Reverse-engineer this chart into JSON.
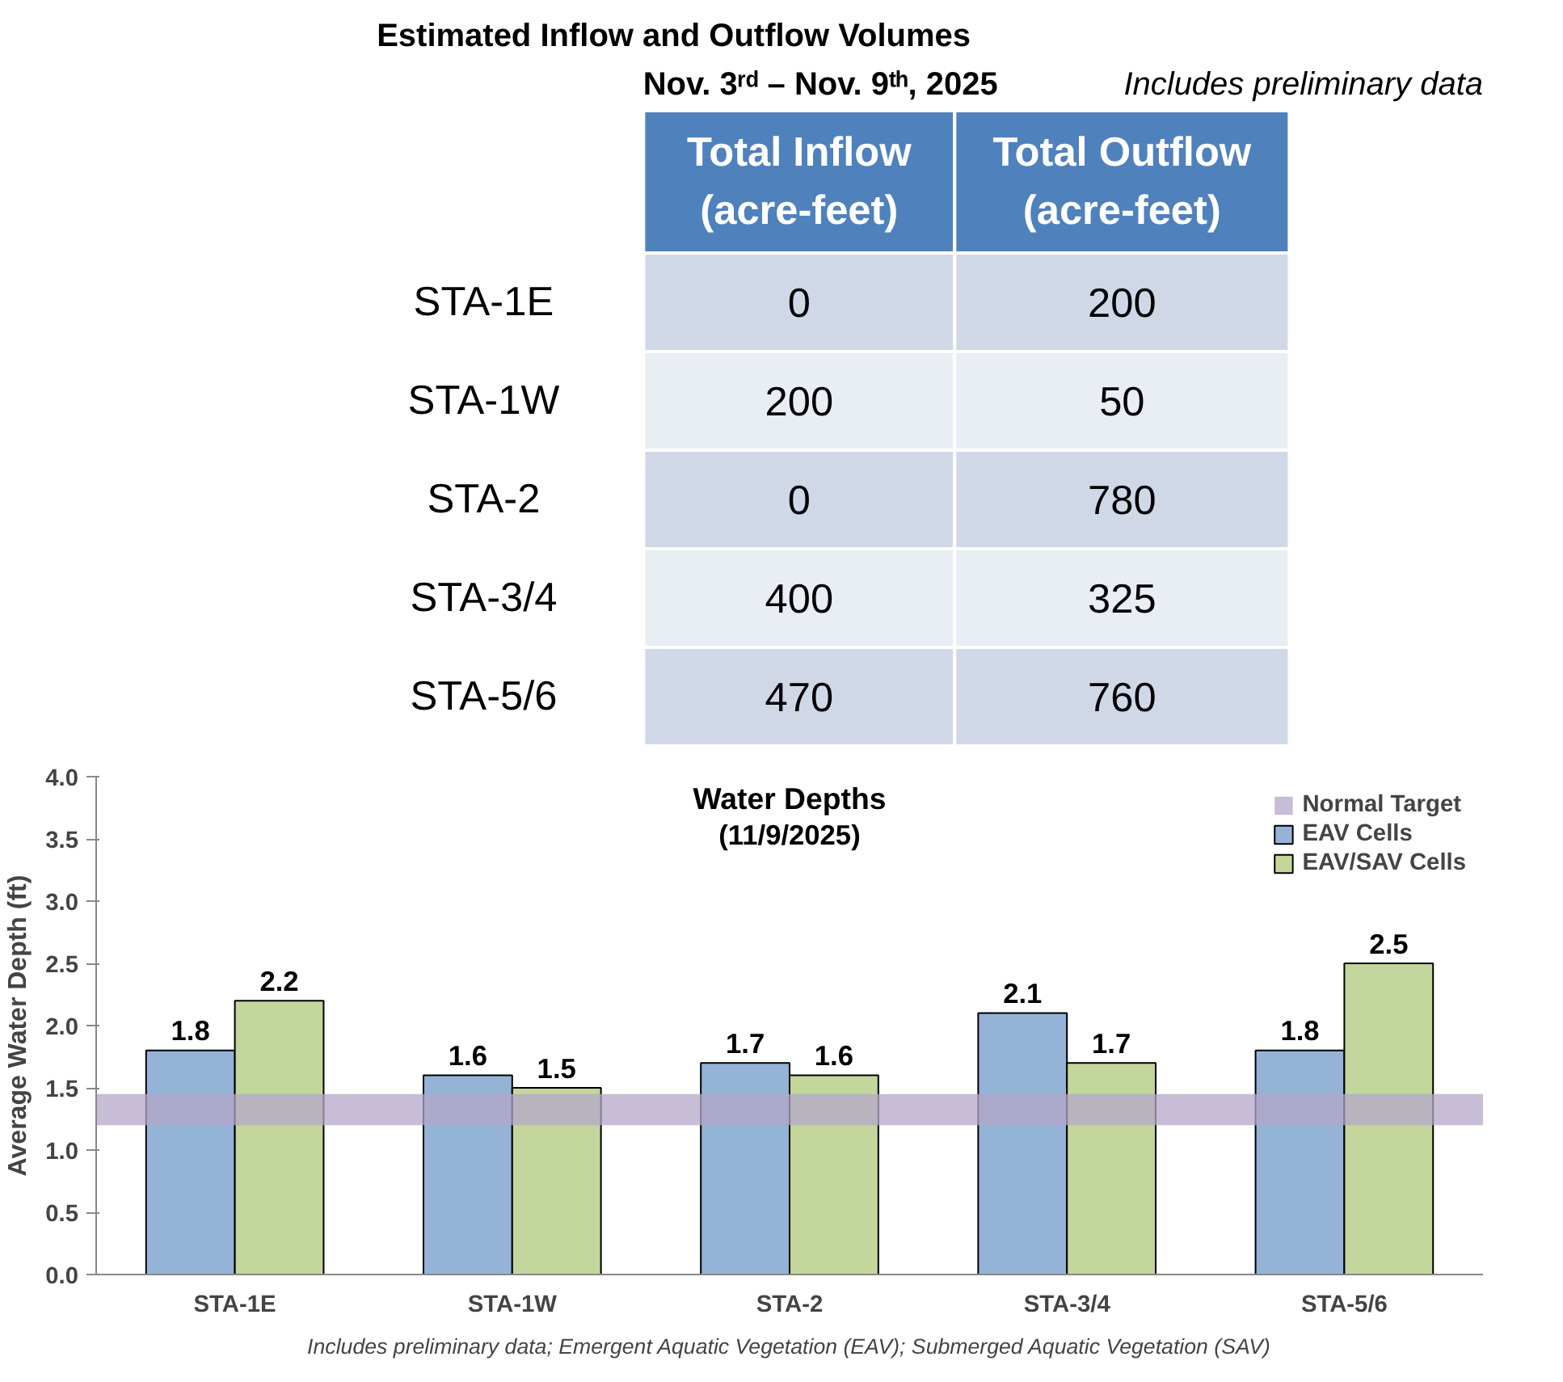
{
  "chart_data": [
    {
      "type": "heatmap",
      "title": "Estimated Inflow and Outflow Volumes",
      "subtitle": "Nov. 3ʳᵈ – Nov. 9ᵗʰ, 2025",
      "annotations": [
        "Includes preliminary data"
      ],
      "categories": [
        "Total Inflow (acre-feet)",
        "Total Outflow (acre-feet)"
      ],
      "y_categories": [
        "STA-1E",
        "STA-1W",
        "STA-2",
        "STA-3/4",
        "STA-5/6"
      ],
      "cells": [
        [
          0,
          200
        ],
        [
          200,
          50
        ],
        [
          0,
          780
        ],
        [
          400,
          325
        ],
        [
          470,
          760
        ]
      ],
      "data_labels": true
    },
    {
      "type": "bar",
      "title": "Water Depths",
      "subtitle": "(11/9/2025)",
      "ylabel": "Average Water Depth (ft)",
      "categories": [
        "STA-1E",
        "STA-1W",
        "STA-2",
        "STA-3/4",
        "STA-5/6"
      ],
      "series": [
        {
          "name": "EAV Cells",
          "color": "#95b3d7",
          "values": [
            1.8,
            1.6,
            1.7,
            2.1,
            1.8
          ]
        },
        {
          "name": "EAV/SAV Cells",
          "color": "#c3d69b",
          "values": [
            2.2,
            1.5,
            1.6,
            1.7,
            2.5
          ]
        }
      ],
      "ylim": [
        0,
        4
      ],
      "yticks": [
        {
          "value": 0,
          "label": "0.0"
        },
        {
          "value": 0.5,
          "label": "0.5"
        },
        {
          "value": 1,
          "label": "1.0"
        },
        {
          "value": 1.5,
          "label": "1.5"
        },
        {
          "value": 2,
          "label": "2.0"
        },
        {
          "value": 2.5,
          "label": "2.5"
        },
        {
          "value": 3,
          "label": "3.0"
        },
        {
          "value": 3.5,
          "label": "3.5"
        },
        {
          "value": 4,
          "label": "4.0"
        }
      ],
      "bands": [
        {
          "axis": "y",
          "from": 1.2,
          "to": 1.45,
          "label": "Normal Target",
          "color": "#b4a7c8"
        }
      ],
      "data_labels": true,
      "legend": "top right",
      "grid": false,
      "annotations": [
        "Includes preliminary data; Emergent Aquatic Vegetation (EAV); Submerged Aquatic Vegetation (SAV)"
      ]
    }
  ]
}
